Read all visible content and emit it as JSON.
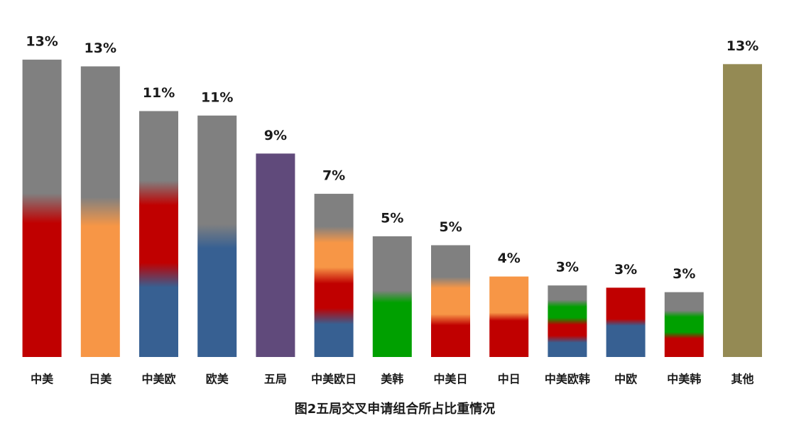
{
  "chart_data": {
    "type": "bar",
    "title": "图2五局交叉申请组合所占比重情况",
    "categories": [
      "中美",
      "日美",
      "中美欧",
      "欧美",
      "五局",
      "中美欧日",
      "美韩",
      "中美日",
      "中日",
      "中美欧韩",
      "中欧",
      "中美韩",
      "其他"
    ],
    "values": [
      13.3,
      13.0,
      11.0,
      10.8,
      9.1,
      7.3,
      5.4,
      5.0,
      3.6,
      3.2,
      3.1,
      2.9,
      13.1
    ],
    "value_labels": [
      "13%",
      "13%",
      "11%",
      "11%",
      "9%",
      "7%",
      "5%",
      "5%",
      "4%",
      "3%",
      "3%",
      "3%",
      "13%"
    ],
    "bar_colors": [
      [
        "#c00000",
        "#808080"
      ],
      [
        "#f79646",
        "#808080"
      ],
      [
        "#376092",
        "#c00000",
        "#808080"
      ],
      [
        "#376092",
        "#808080"
      ],
      [
        "#604a7b"
      ],
      [
        "#376092",
        "#c00000",
        "#f79646",
        "#808080"
      ],
      [
        "#00a000",
        "#808080"
      ],
      [
        "#c00000",
        "#f79646",
        "#808080"
      ],
      [
        "#c00000",
        "#f79646"
      ],
      [
        "#376092",
        "#c00000",
        "#00a000",
        "#808080"
      ],
      [
        "#376092",
        "#c00000"
      ],
      [
        "#c00000",
        "#00a000",
        "#808080"
      ],
      [
        "#948a54"
      ]
    ]
  }
}
